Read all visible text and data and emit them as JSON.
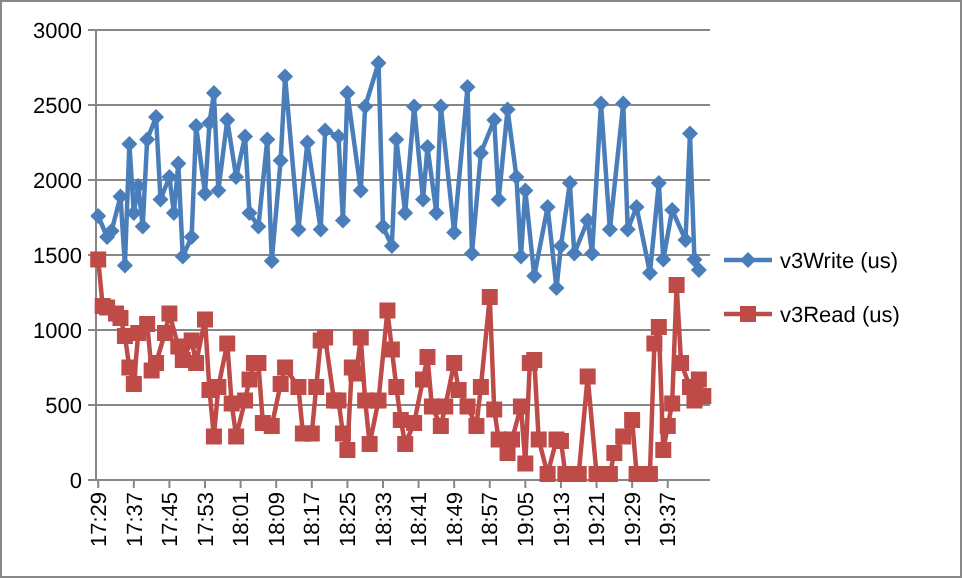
{
  "chart_data": {
    "type": "line",
    "xlim": [
      17.475,
      19.775
    ],
    "ylim": [
      0,
      3000
    ],
    "yticks": [
      0,
      500,
      1000,
      1500,
      2000,
      2500,
      3000
    ],
    "xticks": [
      {
        "value": 17.4833,
        "label": "17:29"
      },
      {
        "value": 17.6167,
        "label": "17:37"
      },
      {
        "value": 17.75,
        "label": "17:45"
      },
      {
        "value": 17.8833,
        "label": "17:53"
      },
      {
        "value": 18.0167,
        "label": "18:01"
      },
      {
        "value": 18.15,
        "label": "18:09"
      },
      {
        "value": 18.2833,
        "label": "18:17"
      },
      {
        "value": 18.4167,
        "label": "18:25"
      },
      {
        "value": 18.55,
        "label": "18:33"
      },
      {
        "value": 18.6833,
        "label": "18:41"
      },
      {
        "value": 18.8167,
        "label": "18:49"
      },
      {
        "value": 18.95,
        "label": "18:57"
      },
      {
        "value": 19.0833,
        "label": "19:05"
      },
      {
        "value": 19.2167,
        "label": "19:13"
      },
      {
        "value": 19.35,
        "label": "19:21"
      },
      {
        "value": 19.4833,
        "label": "19:29"
      },
      {
        "value": 19.6167,
        "label": "19:37"
      }
    ],
    "grid": "y",
    "legend": "right",
    "line_style": "solid",
    "series": [
      {
        "name": "v3Write (us)",
        "color": "#4a7ebb",
        "marker": "diamond",
        "x": [
          17.4833,
          17.5167,
          17.5333,
          17.5667,
          17.5833,
          17.6,
          17.6167,
          17.6333,
          17.65,
          17.6667,
          17.7,
          17.7167,
          17.75,
          17.7667,
          17.7833,
          17.8,
          17.8333,
          17.85,
          17.8833,
          17.9,
          17.9167,
          17.9333,
          17.9667,
          18,
          18.0333,
          18.05,
          18.0833,
          18.1167,
          18.1333,
          18.1667,
          18.1833,
          18.2333,
          18.2667,
          18.3167,
          18.3333,
          18.3833,
          18.4,
          18.4167,
          18.4667,
          18.4833,
          18.5333,
          18.55,
          18.5833,
          18.6,
          18.6333,
          18.6667,
          18.7,
          18.7167,
          18.75,
          18.7667,
          18.8167,
          18.8667,
          18.8833,
          18.9167,
          18.9667,
          18.9833,
          19.0167,
          19.05,
          19.0667,
          19.0833,
          19.1167,
          19.1667,
          19.2,
          19.2167,
          19.25,
          19.2667,
          19.3167,
          19.3333,
          19.3667,
          19.4,
          19.45,
          19.4667,
          19.5,
          19.55,
          19.5833,
          19.6,
          19.6333,
          19.6833,
          19.7,
          19.7167,
          19.7333
        ],
        "values": [
          1760,
          1620,
          1660,
          1890,
          1430,
          2240,
          1780,
          1960,
          1690,
          2270,
          2420,
          1870,
          2020,
          1780,
          2110,
          1490,
          1620,
          2360,
          1910,
          2380,
          2580,
          1930,
          2400,
          2020,
          2290,
          1780,
          1690,
          2270,
          1460,
          2130,
          2690,
          1670,
          2250,
          1670,
          2330,
          2290,
          1730,
          2580,
          1930,
          2490,
          2780,
          1690,
          1560,
          2270,
          1780,
          2490,
          1870,
          2220,
          1780,
          2490,
          1650,
          2620,
          1510,
          2180,
          2400,
          1870,
          2470,
          2020,
          1490,
          1930,
          1360,
          1820,
          1280,
          1560,
          1980,
          1510,
          1730,
          1510,
          2510,
          1670,
          2510,
          1670,
          1820,
          1380,
          1980,
          1470,
          1800,
          1600,
          2310,
          1470,
          1400
        ]
      },
      {
        "name": "v3Read (us)",
        "color": "#be4b48",
        "marker": "square",
        "x": [
          17.4833,
          17.5,
          17.5167,
          17.55,
          17.5667,
          17.5833,
          17.6,
          17.6167,
          17.6333,
          17.6667,
          17.6833,
          17.7,
          17.7333,
          17.75,
          17.7833,
          17.8,
          17.8333,
          17.85,
          17.8833,
          17.9,
          17.9167,
          17.9333,
          17.9667,
          17.9833,
          18,
          18.0333,
          18.05,
          18.0667,
          18.0833,
          18.1,
          18.1333,
          18.1667,
          18.1833,
          18.2333,
          18.25,
          18.2833,
          18.3,
          18.3167,
          18.3333,
          18.3667,
          18.3833,
          18.4,
          18.4167,
          18.4333,
          18.45,
          18.4667,
          18.4833,
          18.5,
          18.5333,
          18.5667,
          18.5833,
          18.6,
          18.6167,
          18.6333,
          18.6667,
          18.7,
          18.7167,
          18.7333,
          18.7667,
          18.7833,
          18.8167,
          18.8333,
          18.8667,
          18.9,
          18.9167,
          18.95,
          18.9667,
          18.9833,
          19.0167,
          19.0333,
          19.0667,
          19.0833,
          19.1,
          19.1167,
          19.1333,
          19.1667,
          19.2,
          19.2167,
          19.2333,
          19.2833,
          19.3167,
          19.35,
          19.4,
          19.4167,
          19.45,
          19.4833,
          19.5,
          19.55,
          19.5667,
          19.5833,
          19.6,
          19.6167,
          19.6333,
          19.65,
          19.6667,
          19.7,
          19.7167,
          19.7333,
          19.75
        ],
        "values": [
          1470,
          1160,
          1150,
          1110,
          1080,
          960,
          750,
          640,
          980,
          1040,
          730,
          780,
          980,
          1110,
          890,
          800,
          930,
          780,
          1070,
          600,
          290,
          620,
          910,
          510,
          290,
          530,
          670,
          780,
          780,
          380,
          360,
          640,
          750,
          620,
          310,
          310,
          620,
          930,
          950,
          530,
          530,
          310,
          200,
          750,
          710,
          950,
          530,
          240,
          530,
          1130,
          870,
          620,
          400,
          240,
          380,
          670,
          820,
          490,
          360,
          490,
          780,
          600,
          490,
          360,
          620,
          1220,
          470,
          270,
          180,
          270,
          490,
          110,
          780,
          800,
          270,
          40,
          270,
          260,
          40,
          40,
          690,
          40,
          40,
          180,
          290,
          400,
          40,
          40,
          910,
          1020,
          200,
          360,
          510,
          1300,
          780,
          620,
          530,
          670,
          560
        ]
      }
    ]
  }
}
